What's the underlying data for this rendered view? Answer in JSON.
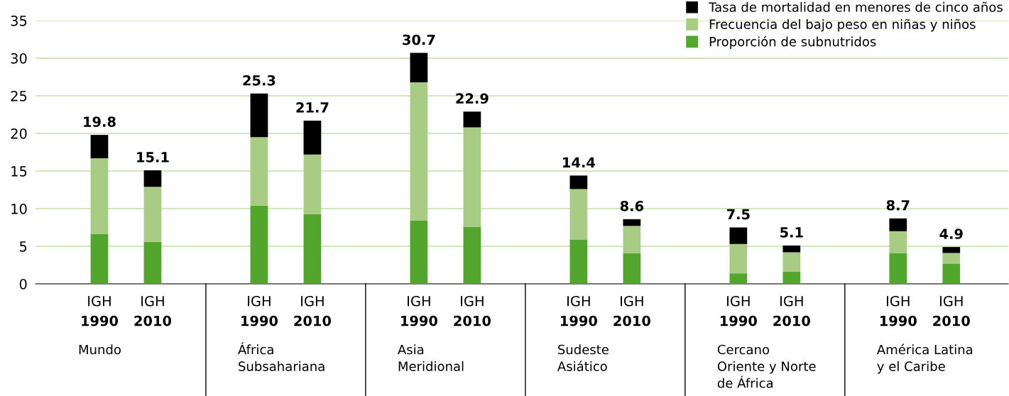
{
  "chart_data": {
    "type": "bar",
    "stacked": true,
    "categories": [
      "IGH\n1990",
      "IGH\n2010",
      null,
      "IGH\n1990",
      "IGH\n2010",
      null,
      "IGH\n1990",
      "IGH\n2010",
      null,
      "IGH\n1990",
      "IGH\n2010",
      null,
      "IGH\n1990",
      "IGH\n2010",
      null,
      "IGH\n1990",
      "IGH\n2010"
    ],
    "series": [
      {
        "name": "Proporción de subnutridos",
        "color": "#52a62b",
        "values": [
          6.6,
          5.6,
          null,
          10.4,
          9.3,
          null,
          8.4,
          7.6,
          null,
          5.9,
          4.1,
          null,
          1.4,
          1.6,
          null,
          4.1,
          2.7
        ]
      },
      {
        "name": "Frecuencia del bajo peso en niñas y niños",
        "color": "#a8cc84",
        "values": [
          10.1,
          7.3,
          null,
          9.1,
          7.9,
          null,
          18.4,
          13.2,
          null,
          6.7,
          3.6,
          null,
          3.9,
          2.6,
          null,
          2.9,
          1.4
        ]
      },
      {
        "name": "Tasa de mortalidad en menores de cinco años",
        "color": "#000000",
        "values": [
          3.1,
          2.2,
          null,
          5.8,
          4.5,
          null,
          3.9,
          2.1,
          null,
          1.8,
          0.9,
          null,
          2.2,
          0.9,
          null,
          1.7,
          0.8
        ]
      }
    ],
    "totals": [
      "19.8",
      "15.1",
      null,
      "25.3",
      "21.7",
      null,
      "30.7",
      "22.9",
      null,
      "14.4",
      "8.6",
      null,
      "7.5",
      "5.1",
      null,
      "8.7",
      "4.9"
    ],
    "annotations": [
      "Mundo",
      "África\nSubsahariana",
      "Asia\nMeridional",
      "Sudeste\nAsiático",
      "Cercano\nOriente y Norte\nde África",
      "América Latina\ny el Caribe"
    ],
    "ylim": [
      0,
      35
    ],
    "yticks": [
      0,
      5,
      10,
      15,
      20,
      25,
      30,
      35
    ],
    "grid": "y",
    "legend": "top right"
  }
}
